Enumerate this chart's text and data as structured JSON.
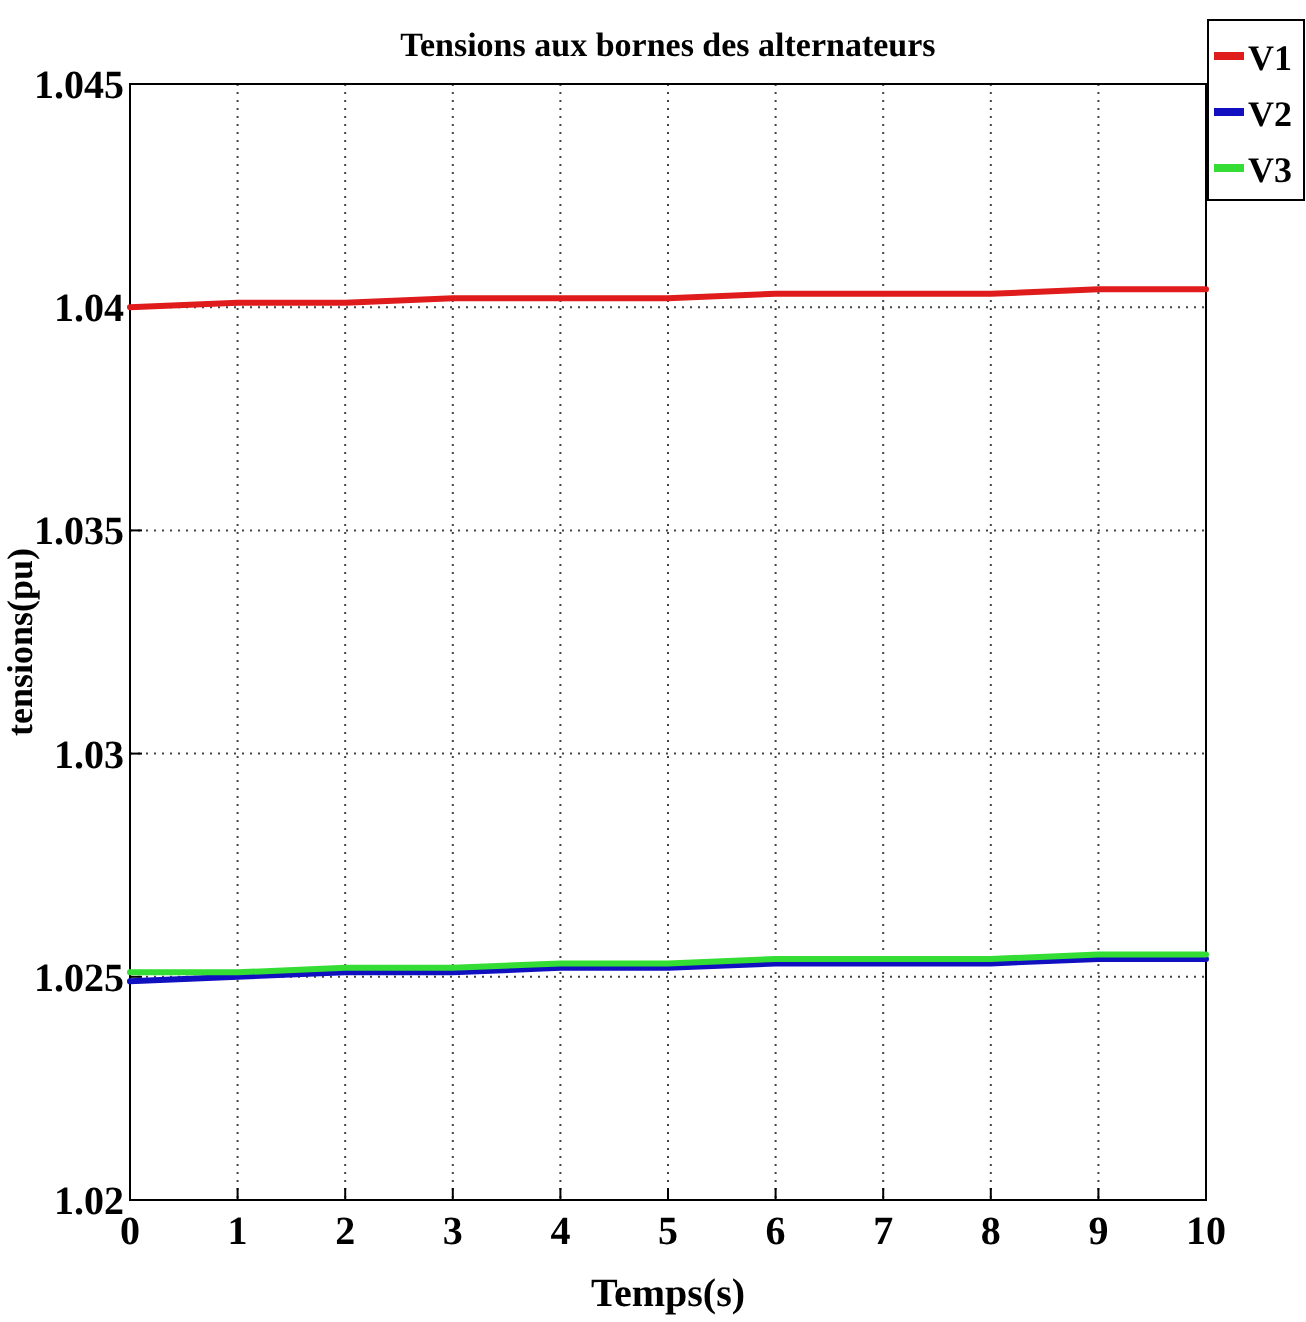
{
  "chart_data": {
    "type": "line",
    "title": "Tensions aux bornes des alternateurs",
    "xlabel": "Temps(s)",
    "ylabel": "tensions(pu)",
    "x": [
      0,
      1,
      2,
      3,
      4,
      5,
      6,
      7,
      8,
      9,
      10
    ],
    "series": [
      {
        "name": "V1",
        "color": "#e01b1b",
        "values": [
          1.04,
          1.0401,
          1.0401,
          1.0402,
          1.0402,
          1.0402,
          1.0403,
          1.0403,
          1.0403,
          1.0404,
          1.0404
        ]
      },
      {
        "name": "V2",
        "color": "#1010c0",
        "values": [
          1.0249,
          1.025,
          1.0251,
          1.0251,
          1.0252,
          1.0252,
          1.0253,
          1.0253,
          1.0253,
          1.0254,
          1.0254
        ]
      },
      {
        "name": "V3",
        "color": "#33dd33",
        "values": [
          1.0251,
          1.0251,
          1.0252,
          1.0252,
          1.0253,
          1.0253,
          1.0254,
          1.0254,
          1.0254,
          1.0255,
          1.0255
        ]
      }
    ],
    "xlim": [
      0,
      10
    ],
    "xticks": [
      0,
      1,
      2,
      3,
      4,
      5,
      6,
      7,
      8,
      9,
      10
    ],
    "ylim": [
      1.02,
      1.045
    ],
    "yticks": [
      {
        "value": 1.02,
        "label": "1.02"
      },
      {
        "value": 1.025,
        "label": "1.025"
      },
      {
        "value": 1.03,
        "label": "1.03"
      },
      {
        "value": 1.035,
        "label": "1.035"
      },
      {
        "value": 1.04,
        "label": "1.04"
      },
      {
        "value": 1.045,
        "label": "1.045"
      }
    ],
    "grid": true,
    "legend": "top right",
    "marker": "none",
    "line_style": "solid"
  }
}
